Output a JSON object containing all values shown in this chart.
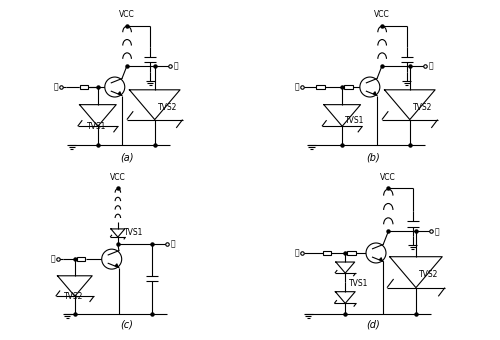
{
  "line_width": 0.8,
  "font_size": 5.5,
  "label_font_size": 7,
  "subfig_labels": [
    "(a)",
    "(b)",
    "(c)",
    "(d)"
  ]
}
